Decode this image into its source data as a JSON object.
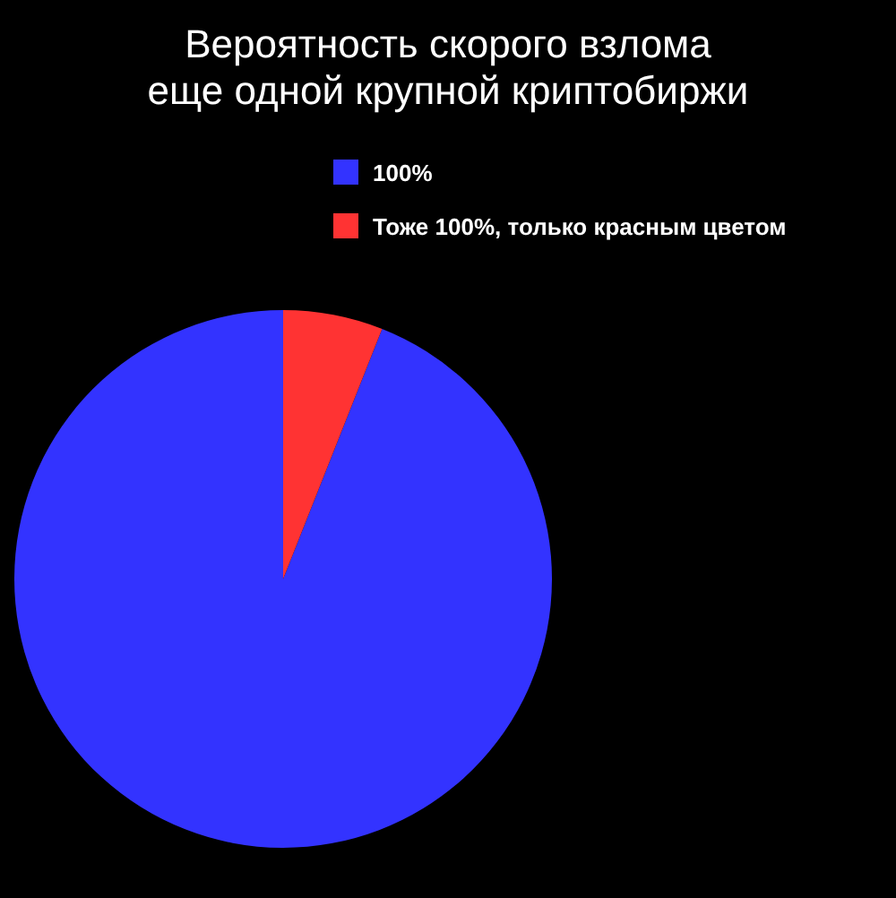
{
  "chart_data": {
    "type": "pie",
    "title": "Вероятность скорого взлома\nеще одной крупной криптобиржи",
    "categories": [
      "100%",
      "Тоже 100%, только красным цветом"
    ],
    "values": [
      94,
      6
    ],
    "colors": [
      "#3333ff",
      "#ff3333"
    ],
    "legend": "top"
  }
}
